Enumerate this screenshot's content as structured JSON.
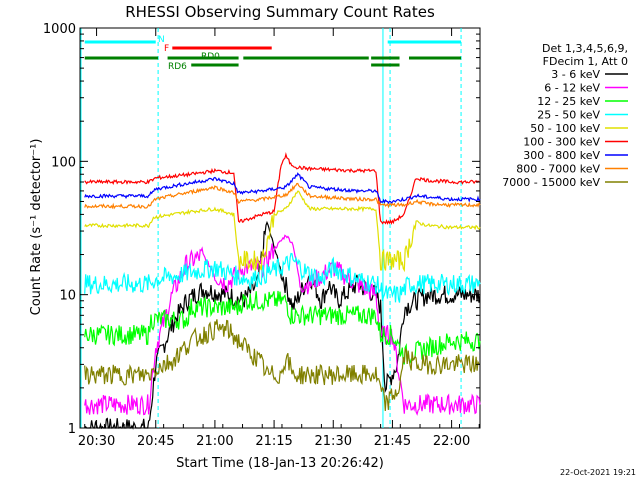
{
  "chart_data": {
    "type": "line",
    "title": "RHESSI Observing Summary Count Rates",
    "xlabel": "Start Time (18-Jan-13 20:26:42)",
    "ylabel": "Count Rate (s⁻¹ detector⁻¹)",
    "yscale": "log",
    "ylim": [
      1,
      1000
    ],
    "xlim_minutes": [
      20.43,
      22.12
    ],
    "x_tick_labels": [
      "20:30",
      "20:45",
      "21:00",
      "21:15",
      "21:30",
      "21:45",
      "22:00"
    ],
    "x_tick_values_hours": [
      20.5,
      20.75,
      21.0,
      21.25,
      21.5,
      21.75,
      22.0
    ],
    "y_tick_labels": [
      "1",
      "10",
      "100",
      "1000"
    ],
    "y_tick_values": [
      1,
      10,
      100,
      1000
    ],
    "legend_header": [
      "Det 1,3,4,5,6,9,",
      "FDecim 1, Att 0"
    ],
    "legend_position": "right",
    "series": [
      {
        "name": "3 - 6 keV",
        "color": "#000000",
        "x": [
          20.45,
          20.72,
          20.75,
          20.82,
          20.88,
          20.95,
          21.05,
          21.12,
          21.18,
          21.22,
          21.28,
          21.33,
          21.4,
          21.45,
          21.48,
          21.52,
          21.6,
          21.68,
          21.7,
          21.72,
          21.77,
          21.8,
          21.85,
          21.9,
          22.0,
          22.12
        ],
        "y": [
          1,
          1,
          3,
          6,
          9,
          11,
          10,
          9,
          12,
          35,
          15,
          8,
          14,
          9,
          12,
          9,
          12,
          10,
          8,
          2,
          3,
          8,
          9,
          10,
          10,
          10
        ]
      },
      {
        "name": "6 - 12 keV",
        "color": "#ff00ff",
        "x": [
          20.45,
          20.72,
          20.75,
          20.82,
          20.88,
          20.95,
          21.0,
          21.05,
          21.12,
          21.2,
          21.25,
          21.3,
          21.33,
          21.36,
          21.4,
          21.5,
          21.6,
          21.68,
          21.7,
          21.75,
          21.8,
          21.85,
          21.9,
          22.0,
          22.12
        ],
        "y": [
          1.5,
          1.5,
          4,
          10,
          17,
          20,
          14,
          12,
          16,
          16,
          22,
          28,
          24,
          12,
          12,
          16,
          12,
          10,
          5,
          5,
          1.5,
          1.5,
          1.5,
          1.5,
          1.5
        ]
      },
      {
        "name": "12 - 25 keV",
        "color": "#00ff00",
        "x": [
          20.45,
          20.72,
          20.73,
          20.88,
          20.9,
          21.1,
          21.12,
          21.3,
          21.32,
          21.68,
          21.7,
          21.75,
          21.8,
          22.0,
          22.12
        ],
        "y": [
          5,
          5,
          6.5,
          6.5,
          8,
          8,
          9,
          9,
          7,
          7,
          5,
          5,
          3.5,
          4.5,
          4.5
        ]
      },
      {
        "name": "25 - 50 keV",
        "color": "#00ffff",
        "x": [
          20.45,
          20.72,
          20.75,
          20.85,
          20.92,
          21.0,
          21.08,
          21.15,
          21.2,
          21.28,
          21.33,
          21.38,
          21.45,
          21.5,
          21.6,
          21.68,
          21.72,
          21.78,
          21.82,
          22.0,
          22.12
        ],
        "y": [
          12,
          12,
          13,
          14,
          15,
          16,
          14,
          13,
          14,
          16,
          18,
          15,
          13,
          16,
          13,
          12,
          10,
          10,
          12,
          12,
          12
        ]
      },
      {
        "name": "50 - 100 keV",
        "color": "#e0e000",
        "x": [
          20.45,
          20.72,
          20.74,
          20.9,
          21.0,
          21.08,
          21.1,
          21.2,
          21.25,
          21.3,
          21.35,
          21.4,
          21.6,
          21.68,
          21.7,
          21.75,
          21.8,
          21.85,
          21.9,
          22.0,
          22.12
        ],
        "y": [
          33,
          33,
          38,
          42,
          44,
          40,
          18,
          18,
          40,
          44,
          60,
          44,
          44,
          44,
          18,
          18,
          18,
          35,
          33,
          32,
          32
        ]
      },
      {
        "name": "100 - 300 keV",
        "color": "#ff0000",
        "x": [
          20.45,
          20.72,
          20.75,
          20.9,
          21.0,
          21.08,
          21.1,
          21.2,
          21.25,
          21.28,
          21.3,
          21.32,
          21.35,
          21.4,
          21.6,
          21.68,
          21.7,
          21.75,
          21.8,
          21.85,
          21.9,
          22.0,
          22.12
        ],
        "y": [
          70,
          70,
          75,
          80,
          85,
          82,
          35,
          40,
          42,
          95,
          110,
          95,
          90,
          88,
          85,
          85,
          35,
          35,
          40,
          75,
          72,
          70,
          70
        ]
      },
      {
        "name": "300 - 800 keV",
        "color": "#0000ff",
        "x": [
          20.45,
          20.72,
          20.75,
          20.88,
          21.0,
          21.08,
          21.1,
          21.2,
          21.25,
          21.3,
          21.35,
          21.4,
          21.6,
          21.68,
          21.7,
          21.75,
          21.8,
          21.85,
          21.9,
          22.0,
          22.12
        ],
        "y": [
          55,
          55,
          62,
          68,
          74,
          68,
          58,
          60,
          62,
          64,
          80,
          64,
          60,
          60,
          50,
          50,
          52,
          55,
          54,
          52,
          52
        ]
      },
      {
        "name": "800 - 7000 keV",
        "color": "#ff8000",
        "x": [
          20.45,
          20.72,
          20.75,
          20.88,
          21.0,
          21.08,
          21.1,
          21.2,
          21.25,
          21.3,
          21.35,
          21.4,
          21.6,
          21.68,
          21.7,
          21.75,
          21.8,
          21.85,
          21.9,
          22.0,
          22.12
        ],
        "y": [
          46,
          46,
          52,
          58,
          64,
          58,
          50,
          52,
          54,
          56,
          68,
          55,
          52,
          52,
          47,
          47,
          47,
          50,
          48,
          47,
          47
        ]
      },
      {
        "name": "7000 - 15000 keV",
        "color": "#808000",
        "x": [
          20.45,
          20.6,
          20.72,
          20.75,
          20.82,
          20.9,
          21.0,
          21.05,
          21.1,
          21.2,
          21.22,
          21.28,
          21.3,
          21.33,
          21.4,
          21.6,
          21.68,
          21.72,
          21.78,
          21.8,
          21.85,
          22.0,
          22.12
        ],
        "y": [
          2.5,
          2.5,
          2.5,
          2.8,
          3.2,
          4.5,
          5.5,
          5.5,
          4.5,
          3,
          2.5,
          2.5,
          3.5,
          2.5,
          2.5,
          2.5,
          2.5,
          1.5,
          2,
          3.5,
          3,
          3,
          3
        ]
      }
    ],
    "annotations": {
      "flags": [
        {
          "label": "N",
          "color": "#00ffff"
        },
        {
          "label": "F",
          "color": "#ff0000"
        },
        {
          "label": "RD0",
          "color": "#008000"
        },
        {
          "label": "RD6",
          "color": "#008000"
        }
      ],
      "timestamp": "22-Oct-2021 19:21"
    }
  }
}
